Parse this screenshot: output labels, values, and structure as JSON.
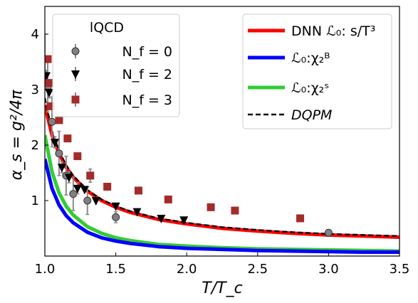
{
  "chart_data": {
    "type": "line",
    "xlabel": "T/T_c",
    "ylabel": "α_s = g²/4π",
    "xlim": [
      1.0,
      3.5
    ],
    "ylim": [
      0.0,
      4.5
    ],
    "x_ticks": [
      1.0,
      1.5,
      2.0,
      2.5,
      3.0,
      3.5
    ],
    "x_tick_labels": [
      "1.0",
      "1.5",
      "2.0",
      "2.5",
      "3.0",
      "3.5"
    ],
    "y_ticks": [
      1,
      2,
      3,
      4
    ],
    "y_tick_labels": [
      "1",
      "2",
      "3",
      "4"
    ],
    "grid": false,
    "legend_left": {
      "placement": "top-left",
      "title": "lQCD",
      "entries": [
        "N_f = 0",
        "N_f = 2",
        "N_f = 3"
      ]
    },
    "legend_right": {
      "placement": "top-right",
      "entries": [
        "DNN ℒ₀: s/T³",
        "ℒ₀:χ₂ᴮ",
        "ℒ₀:χ₂ˢ",
        "DQPM"
      ]
    },
    "lines": [
      {
        "name": "DNN ℒ₀: s/T³",
        "color": "#ff0000",
        "style": "solid",
        "x": [
          1.0,
          1.05,
          1.1,
          1.15,
          1.2,
          1.3,
          1.4,
          1.5,
          1.6,
          1.8,
          2.0,
          2.25,
          2.5,
          2.75,
          3.0,
          3.25,
          3.5
        ],
        "y": [
          2.72,
          2.18,
          1.85,
          1.6,
          1.42,
          1.17,
          1.0,
          0.88,
          0.79,
          0.66,
          0.58,
          0.5,
          0.45,
          0.41,
          0.38,
          0.36,
          0.34
        ]
      },
      {
        "name": "DQPM",
        "color": "#000000",
        "style": "dashed",
        "x": [
          1.0,
          1.05,
          1.1,
          1.15,
          1.2,
          1.3,
          1.4,
          1.5,
          1.6,
          1.8,
          2.0,
          2.25,
          2.5,
          2.75,
          3.0,
          3.25,
          3.5
        ],
        "y": [
          2.85,
          2.25,
          1.9,
          1.64,
          1.45,
          1.19,
          1.02,
          0.9,
          0.81,
          0.68,
          0.6,
          0.52,
          0.47,
          0.43,
          0.4,
          0.38,
          0.36
        ]
      },
      {
        "name": "ℒ₀:χ₂ᴮ",
        "color": "#0000ff",
        "style": "solid",
        "x": [
          1.0,
          1.05,
          1.1,
          1.15,
          1.2,
          1.3,
          1.4,
          1.5,
          1.6,
          1.8,
          2.0,
          2.25,
          2.5,
          2.75,
          3.0,
          3.25,
          3.5
        ],
        "y": [
          1.75,
          1.22,
          0.92,
          0.73,
          0.6,
          0.43,
          0.33,
          0.27,
          0.23,
          0.17,
          0.14,
          0.12,
          0.1,
          0.09,
          0.08,
          0.07,
          0.07
        ]
      },
      {
        "name": "ℒ₀:χ₂ˢ",
        "color": "#32cd32",
        "style": "solid",
        "x": [
          1.0,
          1.05,
          1.1,
          1.15,
          1.2,
          1.3,
          1.4,
          1.5,
          1.6,
          1.8,
          2.0,
          2.25,
          2.5,
          2.75,
          3.0,
          3.25,
          3.5
        ],
        "y": [
          2.18,
          1.52,
          1.14,
          0.9,
          0.74,
          0.53,
          0.41,
          0.33,
          0.28,
          0.21,
          0.18,
          0.15,
          0.13,
          0.12,
          0.11,
          0.1,
          0.09
        ]
      }
    ],
    "scatter": [
      {
        "name": "N_f = 0",
        "marker": "circle",
        "color": "#808080",
        "x": [
          1.0,
          1.02,
          1.05,
          1.1,
          1.15,
          1.2,
          1.3,
          1.5,
          3.0
        ],
        "y": [
          3.55,
          3.05,
          2.42,
          1.85,
          1.45,
          1.12,
          1.0,
          0.7,
          0.42
        ],
        "yerr": [
          0.45,
          0.45,
          0.45,
          0.4,
          0.35,
          0.3,
          0.25,
          0.1,
          0.05
        ]
      },
      {
        "name": "N_f = 2",
        "marker": "triangle-down",
        "color": "#000000",
        "x": [
          1.01,
          1.03,
          1.07,
          1.12,
          1.17,
          1.23,
          1.28,
          1.36,
          1.5,
          1.65,
          1.82,
          1.98
        ],
        "y": [
          3.25,
          2.95,
          2.05,
          1.6,
          1.42,
          1.22,
          1.2,
          1.0,
          0.9,
          0.8,
          0.68,
          0.65
        ],
        "yerr": [
          0.1,
          0.1,
          0.1,
          0.1,
          0.1,
          0.1,
          0.05,
          0.05,
          0.05,
          0.05,
          0.05,
          0.05
        ]
      },
      {
        "name": "N_f = 3",
        "marker": "square",
        "color": "#a52a2a",
        "x": [
          1.02,
          1.03,
          1.04,
          1.1,
          1.16,
          1.23,
          1.32,
          1.44,
          1.66,
          1.87,
          2.17,
          2.34,
          2.8
        ],
        "y": [
          3.55,
          3.12,
          2.7,
          2.45,
          2.12,
          1.8,
          1.45,
          1.25,
          1.18,
          1.02,
          0.88,
          0.82,
          0.68
        ],
        "yerr": [
          0.05,
          0.05,
          0.05,
          0.05,
          0.05,
          0.05,
          0.12,
          0.05,
          0.05,
          0.05,
          0.05,
          0.05,
          0.05
        ]
      }
    ]
  }
}
